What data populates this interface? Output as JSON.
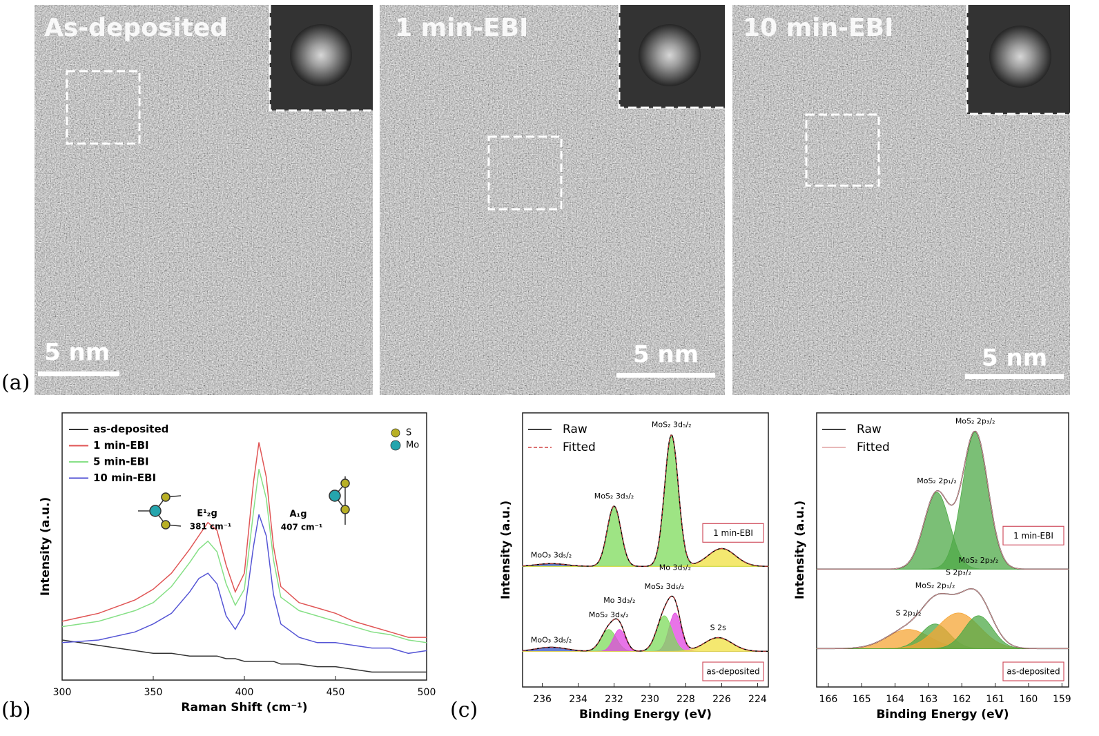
{
  "panels": {
    "a": "(a)",
    "b": "(b)",
    "c": "(c)"
  },
  "tem_images": [
    {
      "title": "As-deposited",
      "scale_bar": "5 nm"
    },
    {
      "title": "1 min-EBI",
      "scale_bar": "5 nm"
    },
    {
      "title": "10 min-EBI",
      "scale_bar": "5 nm"
    }
  ],
  "chart_data": [
    {
      "type": "line",
      "x_label": "Raman Shift (cm⁻¹)",
      "y_label": "Intensity (a.u.)",
      "xlim": [
        300,
        500
      ],
      "xticks": [
        300,
        350,
        400,
        450,
        500
      ],
      "ylim": [
        0,
        100
      ],
      "x": [
        300,
        320,
        340,
        350,
        360,
        370,
        375,
        380,
        385,
        390,
        395,
        400,
        405,
        408,
        412,
        416,
        420,
        430,
        440,
        450,
        460,
        470,
        480,
        490,
        500
      ],
      "series": [
        {
          "name": "as-deposited",
          "color": "#333333",
          "values": [
            15,
            13,
            11,
            10,
            10,
            9,
            9,
            9,
            9,
            8,
            8,
            7,
            7,
            7,
            7,
            7,
            6,
            6,
            5,
            5,
            4,
            3,
            3,
            3,
            3
          ]
        },
        {
          "name": "1 min-EBI",
          "color": "#e05555",
          "values": [
            22,
            25,
            30,
            34,
            40,
            49,
            54,
            59,
            56,
            43,
            33,
            40,
            74,
            89,
            76,
            50,
            35,
            29,
            27,
            25,
            22,
            20,
            18,
            16,
            16
          ]
        },
        {
          "name": "5 min-EBI",
          "color": "#86e086",
          "values": [
            20,
            22,
            26,
            29,
            35,
            44,
            49,
            52,
            48,
            36,
            28,
            34,
            63,
            79,
            68,
            45,
            31,
            26,
            24,
            22,
            20,
            18,
            17,
            15,
            14
          ]
        },
        {
          "name": "10 min-EBI",
          "color": "#5555d5",
          "values": [
            14,
            15,
            18,
            21,
            25,
            33,
            38,
            40,
            36,
            24,
            19,
            25,
            50,
            62,
            54,
            32,
            21,
            16,
            14,
            14,
            13,
            12,
            12,
            10,
            11
          ]
        }
      ],
      "annotations": [
        {
          "label": "E¹₂g",
          "text": "381 cm⁻¹"
        },
        {
          "label": "A₁g",
          "text": "407 cm⁻¹"
        }
      ],
      "atom_legend": [
        {
          "name": "S",
          "color": "#b8b025"
        },
        {
          "name": "Mo",
          "color": "#25a5ad"
        }
      ]
    },
    {
      "type": "area",
      "x_label": "Binding Energy (eV)",
      "y_label": "Intensity (a.u.)",
      "xlim": [
        237.1,
        223.4
      ],
      "xticks": [
        236,
        234,
        232,
        230,
        228,
        226,
        224
      ],
      "ylim": [
        0,
        100
      ],
      "legend": [
        {
          "name": "Raw",
          "color": "#000000",
          "dashed": false
        },
        {
          "name": "Fitted",
          "color": "#d04040",
          "dashed": true
        }
      ],
      "spectra": [
        {
          "sample": "1 min-EBI",
          "baseline": 44,
          "components": [
            {
              "label": "MoO₃ 3d₅/₂",
              "center": 235.5,
              "height": 1,
              "fwhm": 2,
              "color": "#3555c5"
            },
            {
              "label": "MoS₂ 3d₃/₂",
              "center": 232,
              "height": 22,
              "fwhm": 0.9,
              "color": "#7ddb5b"
            },
            {
              "label": "MoS₂ 3d₅/₂",
              "center": 228.8,
              "height": 48,
              "fwhm": 0.9,
              "color": "#7ddb5b"
            },
            {
              "label": "S 2s",
              "center": 226,
              "height": 6.5,
              "fwhm": 1.8,
              "color": "#f0e040"
            }
          ]
        },
        {
          "sample": "as-deposited",
          "baseline": 13,
          "components": [
            {
              "label": "MoO₃ 3d₅/₂",
              "center": 235.5,
              "height": 1.5,
              "fwhm": 2,
              "color": "#3555c5"
            },
            {
              "label": "MoS₂ 3d₃/₂",
              "center": 232.3,
              "height": 8,
              "fwhm": 1,
              "color": "#7ddb5b"
            },
            {
              "label": "Mo 3d₃/₂",
              "center": 231.7,
              "height": 8,
              "fwhm": 0.8,
              "color": "#e045e0"
            },
            {
              "label": "Mo 3d₅/₂",
              "center": 228.6,
              "height": 14,
              "fwhm": 0.8,
              "color": "#e045e0"
            },
            {
              "label": "MoS₂ 3d₅/₂",
              "center": 229.2,
              "height": 13,
              "fwhm": 1,
              "color": "#7ddb5b"
            },
            {
              "label": "S 2s",
              "center": 226.2,
              "height": 5,
              "fwhm": 1.8,
              "color": "#f0e040"
            }
          ]
        }
      ]
    },
    {
      "type": "area",
      "x_label": "Binding Energy (eV)",
      "y_label": "Intensity (a.u.)",
      "xlim": [
        166.35,
        158.8
      ],
      "xticks": [
        166,
        165,
        164,
        163,
        162,
        161,
        160,
        159
      ],
      "ylim": [
        0,
        100
      ],
      "legend": [
        {
          "name": "Raw",
          "color": "#000000",
          "dashed": false
        },
        {
          "name": "Fitted",
          "color": "#e0a0a0",
          "dashed": false
        }
      ],
      "spectra": [
        {
          "sample": "1 min-EBI",
          "baseline": 43,
          "components": [
            {
              "label": "MoS₂ 2p₁/₂",
              "center": 162.75,
              "height": 28,
              "fwhm": 0.9,
              "color": "#4faa48"
            },
            {
              "label": "MoS₂ 2p₃/₂",
              "center": 161.6,
              "height": 50,
              "fwhm": 0.9,
              "color": "#4faa48"
            }
          ]
        },
        {
          "sample": "as-deposited",
          "baseline": 14,
          "components": [
            {
              "label": "S 2p₁/₂",
              "center": 163.6,
              "height": 7,
              "fwhm": 1.5,
              "color": "#f5a535"
            },
            {
              "label": "MoS₂ 2p₁/₂",
              "center": 162.8,
              "height": 9,
              "fwhm": 1,
              "color": "#4faa48"
            },
            {
              "label": "S 2p₃/₂",
              "center": 162.1,
              "height": 13,
              "fwhm": 1.5,
              "color": "#f5a535"
            },
            {
              "label": "MoS₂ 2p₃/₂",
              "center": 161.5,
              "height": 12,
              "fwhm": 1,
              "color": "#4faa48"
            }
          ]
        }
      ]
    }
  ]
}
